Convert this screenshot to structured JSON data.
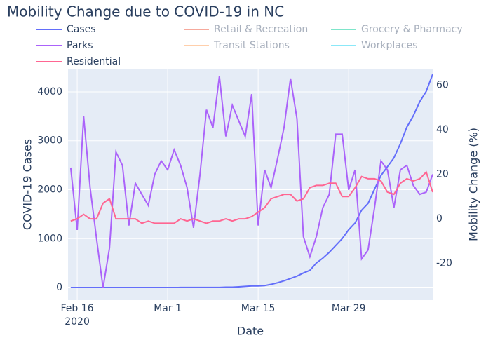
{
  "chart_data": {
    "type": "line",
    "title": "Mobility Change due to COVID-19 in NC",
    "xlabel": "Date",
    "ylabel": "COVID-19 Cases",
    "y2label": "Mobility Change (%)",
    "x": [
      "2020-02-15",
      "2020-02-16",
      "2020-02-17",
      "2020-02-18",
      "2020-02-19",
      "2020-02-20",
      "2020-02-21",
      "2020-02-22",
      "2020-02-23",
      "2020-02-24",
      "2020-02-25",
      "2020-02-26",
      "2020-02-27",
      "2020-02-28",
      "2020-02-29",
      "2020-03-01",
      "2020-03-02",
      "2020-03-03",
      "2020-03-04",
      "2020-03-05",
      "2020-03-06",
      "2020-03-07",
      "2020-03-08",
      "2020-03-09",
      "2020-03-10",
      "2020-03-11",
      "2020-03-12",
      "2020-03-13",
      "2020-03-14",
      "2020-03-15",
      "2020-03-16",
      "2020-03-17",
      "2020-03-18",
      "2020-03-19",
      "2020-03-20",
      "2020-03-21",
      "2020-03-22",
      "2020-03-23",
      "2020-03-24",
      "2020-03-25",
      "2020-03-26",
      "2020-03-27",
      "2020-03-28",
      "2020-03-29",
      "2020-03-30",
      "2020-03-31",
      "2020-04-01",
      "2020-04-02",
      "2020-04-03",
      "2020-04-04",
      "2020-04-05",
      "2020-04-06",
      "2020-04-07",
      "2020-04-08",
      "2020-04-09",
      "2020-04-10",
      "2020-04-11"
    ],
    "xlim": [
      "2020-02-14T14:00",
      "2020-04-11"
    ],
    "xticks": [
      {
        "value": "2020-02-16",
        "label": "Feb 16"
      },
      {
        "value": "2020-03-01",
        "label": "Mar 1"
      },
      {
        "value": "2020-03-15",
        "label": "Mar 15"
      },
      {
        "value": "2020-03-29",
        "label": "Mar 29"
      }
    ],
    "x_year_label": "2020",
    "ylim": [
      -258,
      4473
    ],
    "yticks": [
      0,
      1000,
      2000,
      3000,
      4000
    ],
    "y2lim": [
      -36.5,
      67.4
    ],
    "y2ticks": [
      -20,
      0,
      20,
      40,
      60
    ],
    "grid": true,
    "series": [
      {
        "name": "Cases",
        "color": "#636efa",
        "axis": "y",
        "values": [
          0,
          0,
          0,
          0,
          0,
          0,
          0,
          0,
          0,
          0,
          0,
          0,
          0,
          0,
          0,
          0,
          0,
          1,
          1,
          1,
          2,
          2,
          2,
          2,
          7,
          7,
          15,
          23,
          32,
          33,
          40,
          64,
          97,
          137,
          184,
          232,
          297,
          350,
          500,
          600,
          720,
          860,
          1000,
          1180,
          1320,
          1580,
          1720,
          2010,
          2290,
          2470,
          2650,
          2940,
          3280,
          3510,
          3800,
          4010,
          4360
        ]
      },
      {
        "name": "Retail & Recreation",
        "color": "#ef553b",
        "visible": "legendonly"
      },
      {
        "name": "Grocery & Pharmacy",
        "color": "#00cc96",
        "visible": "legendonly"
      },
      {
        "name": "Parks",
        "color": "#ab63fa",
        "axis": "y2",
        "values": [
          23,
          -5,
          46,
          14,
          -9,
          -31,
          -13,
          30,
          24,
          -3,
          16,
          11,
          6,
          20,
          26,
          22,
          31,
          24,
          14,
          -4,
          20,
          49,
          41,
          64,
          37,
          51,
          44,
          37,
          56,
          -3,
          22,
          14,
          27,
          41,
          63,
          45,
          -8,
          -17,
          -8,
          5,
          11,
          38,
          38,
          13,
          22,
          -18,
          -14,
          5,
          26,
          22,
          5,
          22,
          24,
          15,
          11,
          12,
          20
        ]
      },
      {
        "name": "Transit Stations",
        "color": "#ffa15a",
        "visible": "legendonly"
      },
      {
        "name": "Workplaces",
        "color": "#19d3f3",
        "visible": "legendonly"
      },
      {
        "name": "Residential",
        "color": "#ff6692",
        "axis": "y2",
        "values": [
          -1,
          0,
          2,
          0,
          0,
          7,
          9,
          0,
          0,
          0,
          0,
          -2,
          -1,
          -2,
          -2,
          -2,
          -2,
          0,
          -1,
          0,
          -1,
          -2,
          -1,
          -1,
          0,
          -1,
          0,
          0,
          1,
          3,
          5,
          9,
          10,
          11,
          11,
          8,
          9,
          14,
          15,
          15,
          16,
          16,
          10,
          10,
          14,
          19,
          18,
          18,
          17,
          12,
          11,
          16,
          18,
          17,
          18,
          21,
          12
        ]
      }
    ]
  }
}
